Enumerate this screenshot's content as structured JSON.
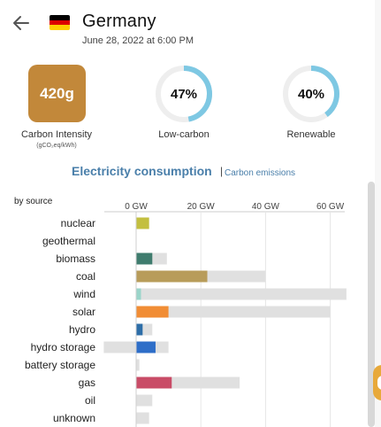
{
  "header": {
    "zone_name": "Germany",
    "datetime": "June 28, 2022 at 6:00 PM",
    "flag": [
      "#000000",
      "#dd0000",
      "#ffce00"
    ]
  },
  "metrics": {
    "carbon_intensity": {
      "value": "420g",
      "label": "Carbon Intensity",
      "unit": "(gCO₂eq/kWh)",
      "color": "#c2883a"
    },
    "low_carbon": {
      "value": "47%",
      "fraction": 0.47,
      "label": "Low-carbon"
    },
    "renewable": {
      "value": "40%",
      "fraction": 0.4,
      "label": "Renewable"
    },
    "ring_color": "#7ec8e3",
    "ring_track": "#eeeeee"
  },
  "section": {
    "title": "Electricity consumption",
    "separator": "|",
    "link": "Carbon emissions"
  },
  "chart_data": {
    "type": "bar",
    "group_label": "by source",
    "x_unit": "GW",
    "x_ticks": [
      "0 GW",
      "20 GW",
      "40 GW",
      "60 GW"
    ],
    "x_tick_values": [
      0,
      20,
      40,
      60
    ],
    "xlim": [
      -10,
      65
    ],
    "categories": [
      "nuclear",
      "geothermal",
      "biomass",
      "coal",
      "wind",
      "solar",
      "hydro",
      "hydro storage",
      "battery storage",
      "gas",
      "oil",
      "unknown"
    ],
    "production": [
      4,
      0,
      5,
      22,
      1.5,
      10,
      2,
      6,
      0,
      11,
      0,
      0
    ],
    "capacity": [
      4,
      0,
      9.5,
      40,
      65,
      60,
      5,
      10,
      1,
      32,
      5,
      4
    ],
    "storage_discharge_min": [
      0,
      0,
      0,
      0,
      0,
      0,
      0,
      -10,
      0,
      0,
      0,
      0
    ],
    "colors": [
      "#c3bf3f",
      "#c3bf3f",
      "#3f7c6e",
      "#b89c5a",
      "#9ad5ca",
      "#f18d35",
      "#2e6ea8",
      "#2e6ec8",
      "#9e9e9e",
      "#c94c67",
      "#8a8a8a",
      "#8a8a8a"
    ]
  }
}
